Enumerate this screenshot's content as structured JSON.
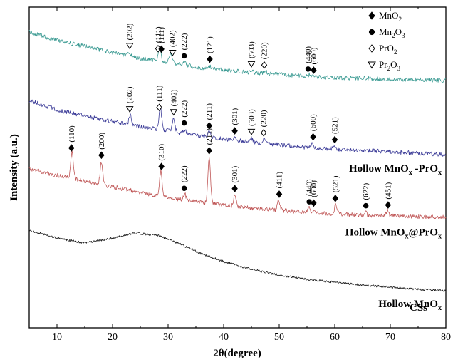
{
  "chart_data": {
    "type": "line",
    "xlabel": "2θ(degree)",
    "ylabel": "Intensity (a.u.)",
    "xlim": [
      5,
      80
    ],
    "x_ticks": [
      10,
      20,
      30,
      40,
      50,
      60,
      70,
      80
    ],
    "y_ticks": "none",
    "grid": false,
    "legend_position": "top-right",
    "legend": [
      {
        "marker": "diamond-filled",
        "label": "MnO",
        "sub": "2"
      },
      {
        "marker": "circle-filled",
        "label": "Mn",
        "sub": "2",
        "tail": "O",
        "sub2": "3"
      },
      {
        "marker": "diamond-open",
        "label": "PrO",
        "sub": "2"
      },
      {
        "marker": "triangle-down-open",
        "label": "Pr",
        "sub": "2",
        "tail": "O",
        "sub2": "3"
      }
    ],
    "series": [
      {
        "color": "#3a9a92",
        "label": null,
        "baseline": [
          [
            5,
            45
          ],
          [
            10,
            57
          ],
          [
            15,
            65
          ],
          [
            20,
            74
          ],
          [
            25,
            82
          ],
          [
            30,
            87
          ],
          [
            35,
            94
          ],
          [
            40,
            98
          ],
          [
            45,
            102
          ],
          [
            50,
            104
          ],
          [
            55,
            107
          ],
          [
            60,
            109
          ],
          [
            65,
            110
          ],
          [
            70,
            111
          ],
          [
            75,
            112
          ],
          [
            80,
            113
          ]
        ],
        "peaks": [
          {
            "x": 23.0,
            "h": 6
          },
          {
            "x": 28.5,
            "h": 19
          },
          {
            "x": 30.5,
            "h": 12
          },
          {
            "x": 33.0,
            "h": 4
          },
          {
            "x": 37.5,
            "h": 4
          },
          {
            "x": 45.0,
            "h": 3
          },
          {
            "x": 47.5,
            "h": 4
          },
          {
            "x": 55.5,
            "h": 3
          }
        ],
        "noise": 3,
        "annotations": [
          {
            "x": 23.1,
            "marker": "triangle-down-open",
            "label": "(202)"
          },
          {
            "x": 28.2,
            "marker": "diamond-open",
            "label": "(111)"
          },
          {
            "x": 28.8,
            "marker": "diamond-filled",
            "label": "(111)"
          },
          {
            "x": 30.8,
            "marker": "triangle-down-open",
            "label": "(402)"
          },
          {
            "x": 32.9,
            "marker": "circle-filled",
            "label": "(222)"
          },
          {
            "x": 37.5,
            "marker": "diamond-filled",
            "label": "(121)"
          },
          {
            "x": 45.0,
            "marker": "triangle-down-open",
            "label": "(503)"
          },
          {
            "x": 47.3,
            "marker": "diamond-open",
            "label": "(220)"
          },
          {
            "x": 55.2,
            "marker": "circle-filled",
            "label": "(440)"
          },
          {
            "x": 56.2,
            "marker": "diamond-filled",
            "label": "(600)"
          }
        ]
      },
      {
        "color": "#3c3c98",
        "label": "Hollow MnO",
        "label_sub": "x",
        "label_tail": " -PrO",
        "label_sub2": "x",
        "baseline": [
          [
            5,
            141
          ],
          [
            10,
            154
          ],
          [
            15,
            163
          ],
          [
            20,
            170
          ],
          [
            25,
            178
          ],
          [
            30,
            183
          ],
          [
            35,
            190
          ],
          [
            40,
            195
          ],
          [
            45,
            199
          ],
          [
            50,
            203
          ],
          [
            55,
            207
          ],
          [
            60,
            209
          ],
          [
            65,
            211
          ],
          [
            70,
            213
          ],
          [
            75,
            215
          ],
          [
            80,
            217
          ]
        ],
        "peaks": [
          {
            "x": 23.2,
            "h": 14
          },
          {
            "x": 28.6,
            "h": 32
          },
          {
            "x": 31.0,
            "h": 18
          },
          {
            "x": 33.0,
            "h": 6
          },
          {
            "x": 37.4,
            "h": 7
          },
          {
            "x": 42.0,
            "h": 4
          },
          {
            "x": 45.0,
            "h": 5
          },
          {
            "x": 47.3,
            "h": 6
          },
          {
            "x": 56.0,
            "h": 7
          },
          {
            "x": 60.0,
            "h": 4
          }
        ],
        "noise": 3,
        "annotations": [
          {
            "x": 23.1,
            "marker": "triangle-down-open",
            "label": "(202)"
          },
          {
            "x": 28.4,
            "marker": "diamond-open",
            "label": "(111)"
          },
          {
            "x": 31.0,
            "marker": "triangle-down-open",
            "label": "(402)"
          },
          {
            "x": 32.9,
            "marker": "circle-filled",
            "label": "(222)"
          },
          {
            "x": 37.4,
            "marker": "diamond-filled",
            "label": "(211)"
          },
          {
            "x": 42.0,
            "marker": "diamond-filled",
            "label": "(301)"
          },
          {
            "x": 45.0,
            "marker": "triangle-down-open",
            "label": "(503)"
          },
          {
            "x": 47.2,
            "marker": "diamond-open",
            "label": "(220)"
          },
          {
            "x": 56.1,
            "marker": "diamond-filled",
            "label": "(600)"
          },
          {
            "x": 60.0,
            "marker": "diamond-filled",
            "label": "(521)"
          }
        ]
      },
      {
        "color": "#c05858",
        "label": "Hollow MnO",
        "label_sub": "x",
        "label_tail": "@PrO",
        "label_sub2": "x",
        "baseline": [
          [
            5,
            237
          ],
          [
            10,
            246
          ],
          [
            15,
            254
          ],
          [
            20,
            262
          ],
          [
            25,
            270
          ],
          [
            30,
            277
          ],
          [
            35,
            283
          ],
          [
            40,
            288
          ],
          [
            45,
            292
          ],
          [
            50,
            295
          ],
          [
            55,
            298
          ],
          [
            60,
            300
          ],
          [
            65,
            302
          ],
          [
            70,
            303
          ],
          [
            75,
            304
          ],
          [
            80,
            305
          ]
        ],
        "peaks": [
          {
            "x": 12.7,
            "h": 37
          },
          {
            "x": 18.0,
            "h": 32
          },
          {
            "x": 28.7,
            "h": 36
          },
          {
            "x": 33.0,
            "h": 8
          },
          {
            "x": 37.4,
            "h": 65
          },
          {
            "x": 42.0,
            "h": 16
          },
          {
            "x": 49.9,
            "h": 15
          },
          {
            "x": 55.4,
            "h": 6
          },
          {
            "x": 56.3,
            "h": 5
          },
          {
            "x": 60.2,
            "h": 14
          },
          {
            "x": 65.5,
            "h": 5
          },
          {
            "x": 69.5,
            "h": 7
          }
        ],
        "noise": 3,
        "annotations": [
          {
            "x": 12.6,
            "marker": "diamond-filled",
            "label": "(110)"
          },
          {
            "x": 18.0,
            "marker": "diamond-filled",
            "label": "(200)"
          },
          {
            "x": 28.8,
            "marker": "diamond-filled",
            "label": "(310)"
          },
          {
            "x": 32.9,
            "marker": "circle-filled",
            "label": "(222)"
          },
          {
            "x": 37.4,
            "marker": "diamond-filled",
            "label": "(211)"
          },
          {
            "x": 42.0,
            "marker": "diamond-filled",
            "label": "(301)"
          },
          {
            "x": 50.0,
            "marker": "diamond-filled",
            "label": "(411)"
          },
          {
            "x": 55.4,
            "marker": "circle-filled",
            "label": "(440)"
          },
          {
            "x": 56.2,
            "marker": "diamond-filled",
            "label": "(600)"
          },
          {
            "x": 60.1,
            "marker": "diamond-filled",
            "label": "(521)"
          },
          {
            "x": 65.6,
            "marker": "circle-filled",
            "label": "(622)"
          },
          {
            "x": 69.6,
            "marker": "diamond-filled",
            "label": "(451)"
          }
        ]
      },
      {
        "color": "#1a1a1a",
        "label": "Hollow MnO",
        "label_sub": "x",
        "baseline": [
          [
            5,
            323
          ],
          [
            10,
            334
          ],
          [
            15,
            341
          ],
          [
            20,
            334
          ],
          [
            24,
            327
          ],
          [
            28,
            330
          ],
          [
            32,
            342
          ],
          [
            36,
            356
          ],
          [
            40,
            367
          ],
          [
            45,
            378
          ],
          [
            50,
            386
          ],
          [
            55,
            392
          ],
          [
            60,
            396
          ],
          [
            65,
            400
          ],
          [
            70,
            403
          ],
          [
            75,
            406
          ],
          [
            80,
            408
          ]
        ],
        "peaks": [],
        "noise": 1.5,
        "annotations": []
      }
    ],
    "bottom_label": "CSs"
  }
}
